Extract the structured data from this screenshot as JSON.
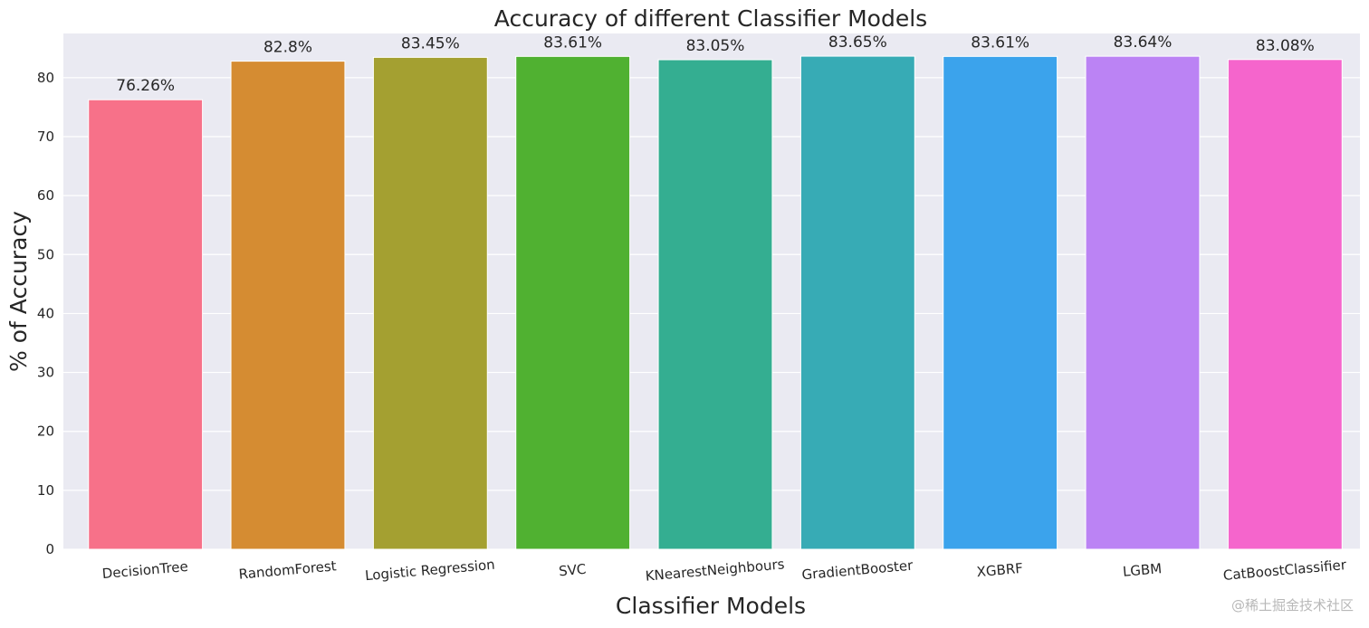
{
  "chart_data": {
    "type": "bar",
    "title": "Accuracy of different Classifier Models",
    "xlabel": "Classifier Models",
    "ylabel": "% of Accuracy",
    "ylim": [
      0,
      87.5
    ],
    "yticks": [
      0,
      10,
      20,
      30,
      40,
      50,
      60,
      70,
      80
    ],
    "grid": true,
    "categories": [
      "DecisionTree",
      "RandomForest",
      "Logistic Regression",
      "SVC",
      "KNearestNeighbours",
      "GradientBooster",
      "XGBRF",
      "LGBM",
      "CatBoostClassifier"
    ],
    "values": [
      76.26,
      82.8,
      83.45,
      83.61,
      83.05,
      83.65,
      83.61,
      83.64,
      83.08
    ],
    "data_labels": [
      "76.26%",
      "82.8%",
      "83.45%",
      "83.61%",
      "83.05%",
      "83.65%",
      "83.61%",
      "83.64%",
      "83.08%"
    ],
    "colors": [
      "#f77189",
      "#d58c32",
      "#a4a031",
      "#50b131",
      "#34ae91",
      "#37abb5",
      "#3ba3ec",
      "#bb83f4",
      "#f565cc"
    ]
  },
  "watermark": "@稀土掘金技术社区",
  "style": {
    "plot_background": "#eaeaf2",
    "grid_color": "#ffffff",
    "text_color": "#262626"
  }
}
